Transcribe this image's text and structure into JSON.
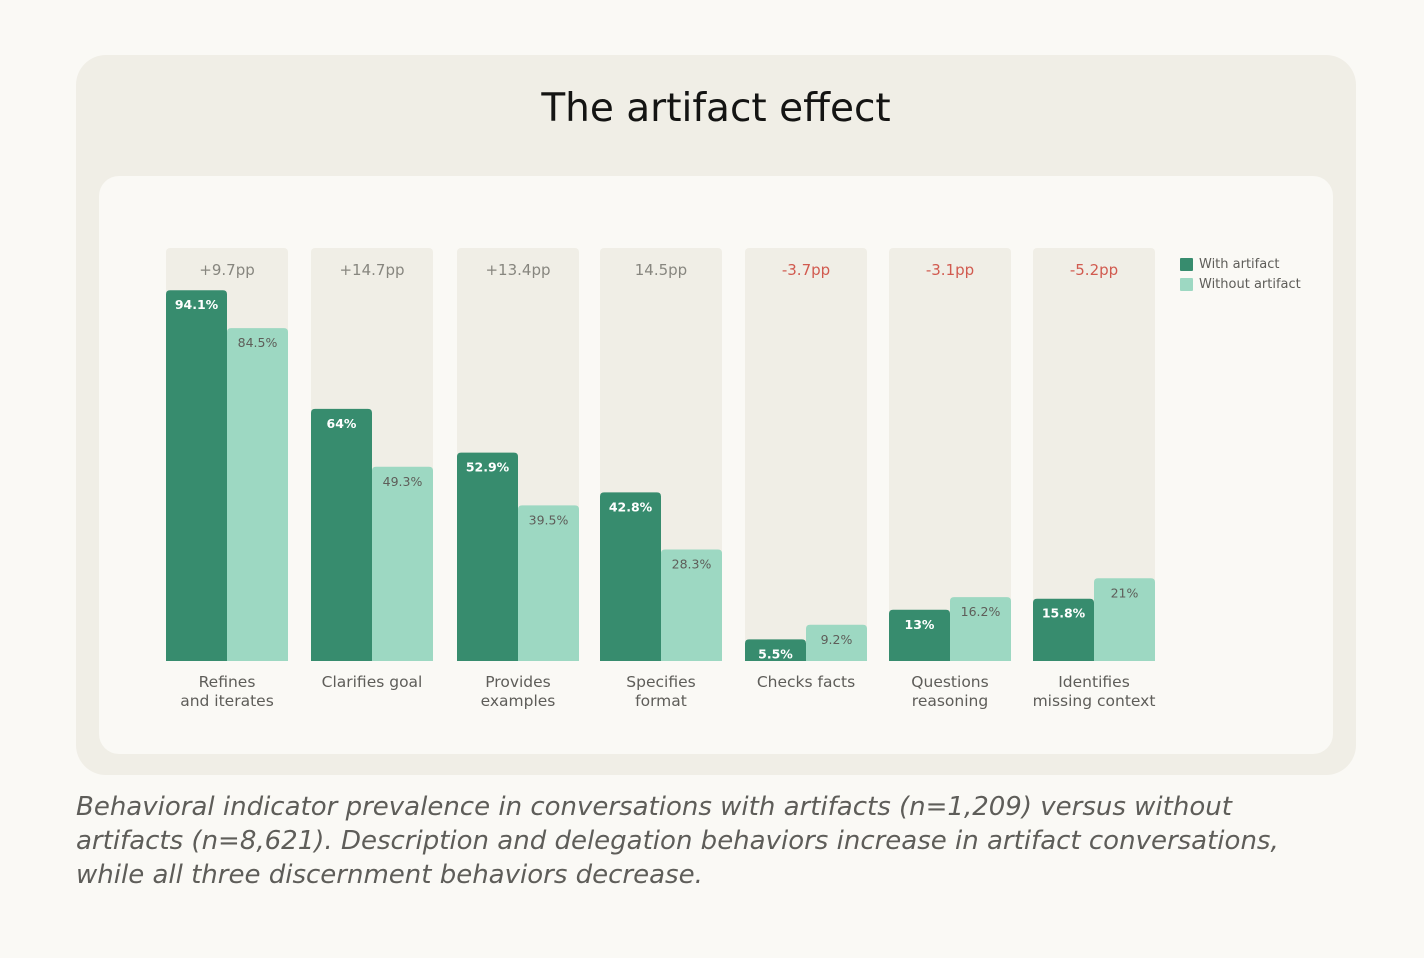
{
  "chart_data": {
    "type": "bar",
    "title": "The artifact effect",
    "xlabel": "",
    "ylabel": "",
    "ylim": [
      0,
      100
    ],
    "grid": false,
    "legend_position": "top-right",
    "categories": [
      [
        "Refines",
        "and iterates"
      ],
      [
        "Clarifies goal"
      ],
      [
        "Provides",
        "examples"
      ],
      [
        "Specifies",
        "format"
      ],
      [
        "Checks facts"
      ],
      [
        "Questions",
        "reasoning"
      ],
      [
        "Identifies",
        "missing context"
      ]
    ],
    "series": [
      {
        "name": "With artifact",
        "color": "#378c6e",
        "values": [
          94.1,
          64,
          52.9,
          42.8,
          5.5,
          13,
          15.8
        ],
        "labels": [
          "94.1%",
          "64%",
          "52.9%",
          "42.8%",
          "5.5%",
          "13%",
          "15.8%"
        ]
      },
      {
        "name": "Without artifact",
        "color": "#9dd8c2",
        "values": [
          84.5,
          49.3,
          39.5,
          28.3,
          9.2,
          16.2,
          21
        ],
        "labels": [
          "84.5%",
          "49.3%",
          "39.5%",
          "28.3%",
          "9.2%",
          "16.2%",
          "21%"
        ]
      }
    ],
    "annotations": [
      {
        "text": "+9.7pp",
        "sign": "positive"
      },
      {
        "text": "+14.7pp",
        "sign": "positive"
      },
      {
        "text": "+13.4pp",
        "sign": "positive"
      },
      {
        "text": "14.5pp",
        "sign": "positive"
      },
      {
        "text": "-3.7pp",
        "sign": "negative"
      },
      {
        "text": "-3.1pp",
        "sign": "negative"
      },
      {
        "text": "-5.2pp",
        "sign": "negative"
      }
    ]
  },
  "colors": {
    "positive": "#87867f",
    "negative": "#d15a4f",
    "track": "#f0eee6",
    "label_light": "#ffffff",
    "label_dark": "#5e5d59"
  },
  "caption": "Behavioral indicator prevalence in conversations with artifacts (n=1,209) versus without artifacts (n=8,621). Description and delegation behaviors increase in artifact conversations, while all three discernment behaviors decrease."
}
